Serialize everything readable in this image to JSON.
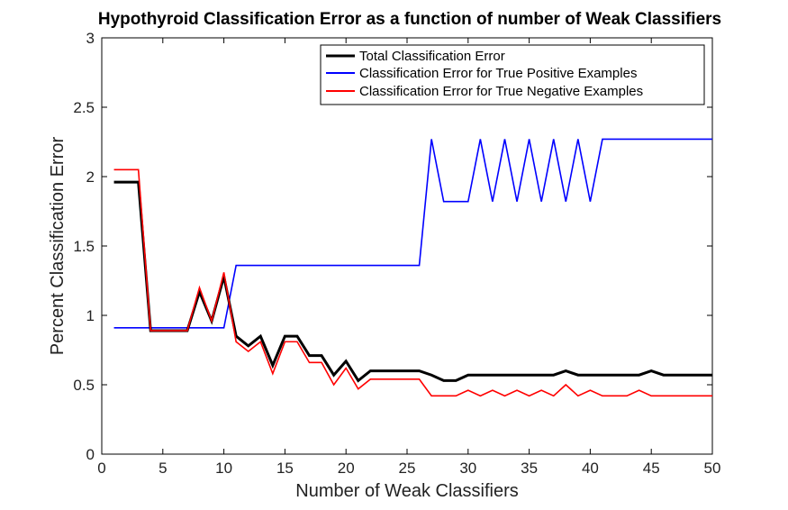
{
  "chart_data": {
    "type": "line",
    "title": "Hypothyroid Classification Error as a function of number of Weak Classifiers",
    "xlabel": "Number of Weak Classifiers",
    "ylabel": "Percent Classification Error",
    "xlim": [
      0,
      50
    ],
    "ylim": [
      0,
      3
    ],
    "xticks": [
      "0",
      "5",
      "10",
      "15",
      "20",
      "25",
      "30",
      "35",
      "40",
      "45",
      "50"
    ],
    "yticks": [
      "0",
      "0.5",
      "1",
      "1.5",
      "2",
      "2.5",
      "3"
    ],
    "grid": false,
    "legend_position": "top-right",
    "x": [
      1,
      2,
      3,
      4,
      5,
      6,
      7,
      8,
      9,
      10,
      11,
      12,
      13,
      14,
      15,
      16,
      17,
      18,
      19,
      20,
      21,
      22,
      23,
      24,
      25,
      26,
      27,
      28,
      29,
      30,
      31,
      32,
      33,
      34,
      35,
      36,
      37,
      38,
      39,
      40,
      41,
      42,
      43,
      44,
      45,
      46,
      47,
      48,
      49,
      50
    ],
    "series": [
      {
        "name": "Total Classification Error",
        "color": "#000000",
        "values": [
          1.96,
          1.96,
          1.96,
          0.89,
          0.89,
          0.89,
          0.89,
          1.17,
          0.96,
          1.28,
          0.85,
          0.78,
          0.85,
          0.64,
          0.85,
          0.85,
          0.71,
          0.71,
          0.57,
          0.67,
          0.53,
          0.6,
          0.6,
          0.6,
          0.6,
          0.6,
          0.57,
          0.53,
          0.53,
          0.57,
          0.57,
          0.57,
          0.57,
          0.57,
          0.57,
          0.57,
          0.57,
          0.6,
          0.57,
          0.57,
          0.57,
          0.57,
          0.57,
          0.57,
          0.6,
          0.57,
          0.57,
          0.57,
          0.57,
          0.57
        ]
      },
      {
        "name": "Classification Error for True Positive Examples",
        "color": "#0000ff",
        "values": [
          0.91,
          0.91,
          0.91,
          0.91,
          0.91,
          0.91,
          0.91,
          0.91,
          0.91,
          0.91,
          1.36,
          1.36,
          1.36,
          1.36,
          1.36,
          1.36,
          1.36,
          1.36,
          1.36,
          1.36,
          1.36,
          1.36,
          1.36,
          1.36,
          1.36,
          1.36,
          2.27,
          1.82,
          1.82,
          1.82,
          2.27,
          1.82,
          2.27,
          1.82,
          2.27,
          1.82,
          2.27,
          1.82,
          2.27,
          1.82,
          2.27,
          2.27,
          2.27,
          2.27,
          2.27,
          2.27,
          2.27,
          2.27,
          2.27,
          2.27
        ]
      },
      {
        "name": "Classification Error for True Negative Examples",
        "color": "#ff0000",
        "values": [
          2.05,
          2.05,
          2.05,
          0.89,
          0.89,
          0.89,
          0.89,
          1.2,
          0.96,
          1.31,
          0.81,
          0.74,
          0.81,
          0.58,
          0.81,
          0.81,
          0.66,
          0.66,
          0.5,
          0.62,
          0.47,
          0.54,
          0.54,
          0.54,
          0.54,
          0.54,
          0.42,
          0.42,
          0.42,
          0.46,
          0.42,
          0.46,
          0.42,
          0.46,
          0.42,
          0.46,
          0.42,
          0.5,
          0.42,
          0.46,
          0.42,
          0.42,
          0.42,
          0.46,
          0.42,
          0.42,
          0.42,
          0.42,
          0.42,
          0.42
        ]
      }
    ]
  }
}
